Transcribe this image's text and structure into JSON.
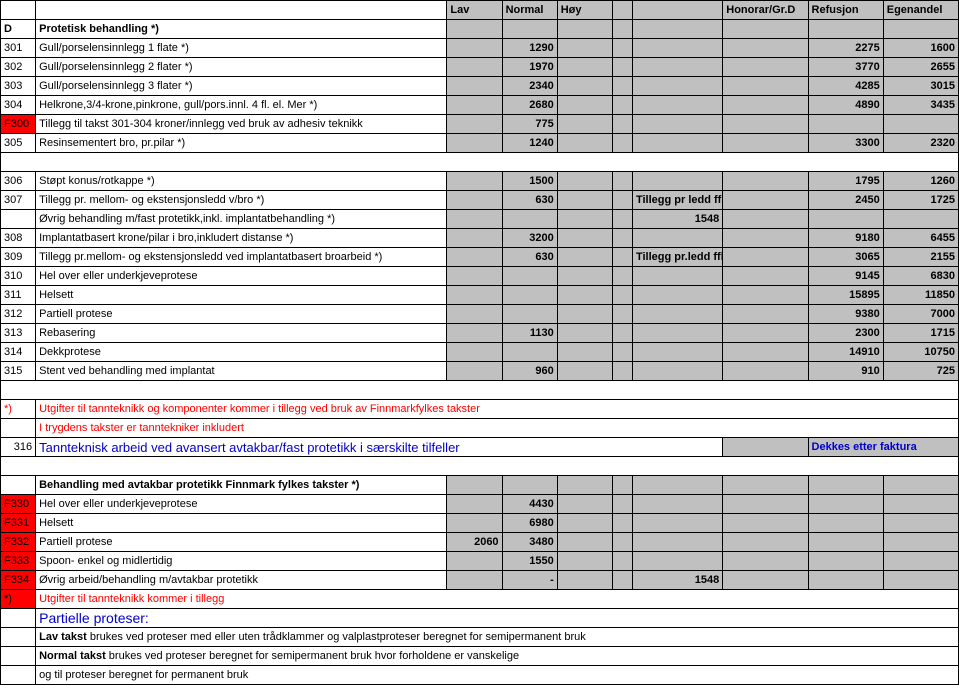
{
  "header": {
    "lav": "Lav",
    "normal": "Normal",
    "hoy": "Høy",
    "honorar": "Honorar/Gr.D",
    "refusjon": "Refusjon",
    "egenandel": "Egenandel"
  },
  "section_d": {
    "code": "D",
    "title": "Protetisk behandling *)"
  },
  "rows1": [
    {
      "code": "301",
      "desc": "Gull/porselensinnlegg 1 flate *)",
      "normal": "1290",
      "ref": "2275",
      "egen": "1600"
    },
    {
      "code": "302",
      "desc": "Gull/porselensinnlegg 2 flater *)",
      "normal": "1970",
      "ref": "3770",
      "egen": "2655"
    },
    {
      "code": "303",
      "desc": "Gull/porselensinnlegg 3 flater *)",
      "normal": "2340",
      "ref": "4285",
      "egen": "3015"
    },
    {
      "code": "304",
      "desc": "Helkrone,3/4-krone,pinkrone, gull/pors.innl. 4 fl. el. Mer *)",
      "normal": "2680",
      "ref": "4890",
      "egen": "3435"
    },
    {
      "code": "F300",
      "desc": "Tillegg  til takst 301-304 kroner/innlegg ved bruk av adhesiv teknikk",
      "normal": "775",
      "redcode": true
    },
    {
      "code": "305",
      "desc": "Resinsementert bro, pr.pilar *)",
      "normal": "1240",
      "ref": "3300",
      "egen": "2320"
    }
  ],
  "rows2": [
    {
      "code": "306",
      "desc": "Støpt konus/rotkappe *)",
      "normal": "1500",
      "ref": "1795",
      "egen": "1260"
    },
    {
      "code": "307",
      "desc": "Tillegg pr. mellom- og ekstensjonsledd v/bro *)",
      "normal": "630",
      "gap2": "Tillegg pr ledd  ffks takst",
      "ref": "2450",
      "egen": "1725"
    },
    {
      "code": "",
      "desc": "Øvrig behandling m/fast protetikk,inkl. implantatbehandling *)",
      "gap2_num": "1548"
    },
    {
      "code": "308",
      "desc": "Implantatbasert krone/pilar i bro,inkludert distanse *)",
      "normal": "3200",
      "ref": "9180",
      "egen": "6455"
    },
    {
      "code": "309",
      "desc": "Tillegg pr.mellom- og ekstensjonsledd ved implantatbasert broarbeid *)",
      "normal": "630",
      "gap2": "Tillegg pr.ledd ffks takst",
      "ref": "3065",
      "egen": "2155"
    },
    {
      "code": "310",
      "desc": "Hel over eller underkjeveprotese",
      "ref": "9145",
      "egen": "6830"
    },
    {
      "code": "311",
      "desc": "Helsett",
      "ref": "15895",
      "egen": "11850"
    },
    {
      "code": "312",
      "desc": "Partiell protese",
      "ref": "9380",
      "egen": "7000"
    },
    {
      "code": "313",
      "desc": "Rebasering",
      "normal": "1130",
      "ref": "2300",
      "egen": "1715"
    },
    {
      "code": "314",
      "desc": "Dekkprotese",
      "ref": "14910",
      "egen": "10750"
    },
    {
      "code": "315",
      "desc": "Stent ved behandling med implantat",
      "normal": "960",
      "ref": "910",
      "egen": "725"
    }
  ],
  "notes1": {
    "star": "*)",
    "line1": "Utgifter til tannteknikk og komponenter kommer i tillegg ved bruk av Finnmarkfylkes takster",
    "line2": "I trygdens takster er tanntekniker inkludert",
    "code316": "316",
    "line3": "Tannteknisk arbeid ved avansert avtakbar/fast protetikk i særskilte tilfeller",
    "dekkes": "Dekkes etter faktura"
  },
  "section2_title": "Behandling med avtakbar protetikk Finnmark fylkes takster *)",
  "rows3": [
    {
      "code": "F330",
      "desc": "Hel over eller underkjeveprotese",
      "normal": "4430"
    },
    {
      "code": "F331",
      "desc": "Helsett",
      "normal": "6980"
    },
    {
      "code": "F332",
      "desc": "Partiell protese",
      "lav": "2060",
      "normal": "3480"
    },
    {
      "code": "F333",
      "desc": "Spoon- enkel og midlertidig",
      "normal": "1550"
    },
    {
      "code": "F334",
      "desc": "Øvrig arbeid/behandling m/avtakbar protetikk",
      "normal": "-",
      "gap2_num": "1548"
    }
  ],
  "notes2": {
    "star": "*)",
    "line1": "Utgifter til tannteknikk kommer i tillegg",
    "partielle": "Partielle proteser:",
    "lav_pre": "Lav takst",
    "lav_rest": " brukes ved proteser med eller uten trådklammer og valplastproteser beregnet for semipermanent bruk",
    "norm_pre": "Normal takst",
    "norm_rest": " brukes ved proteser beregnet for semipermanent bruk hvor forholdene er vanskelige",
    "line4": "og til proteser beregnet for permanent bruk"
  }
}
